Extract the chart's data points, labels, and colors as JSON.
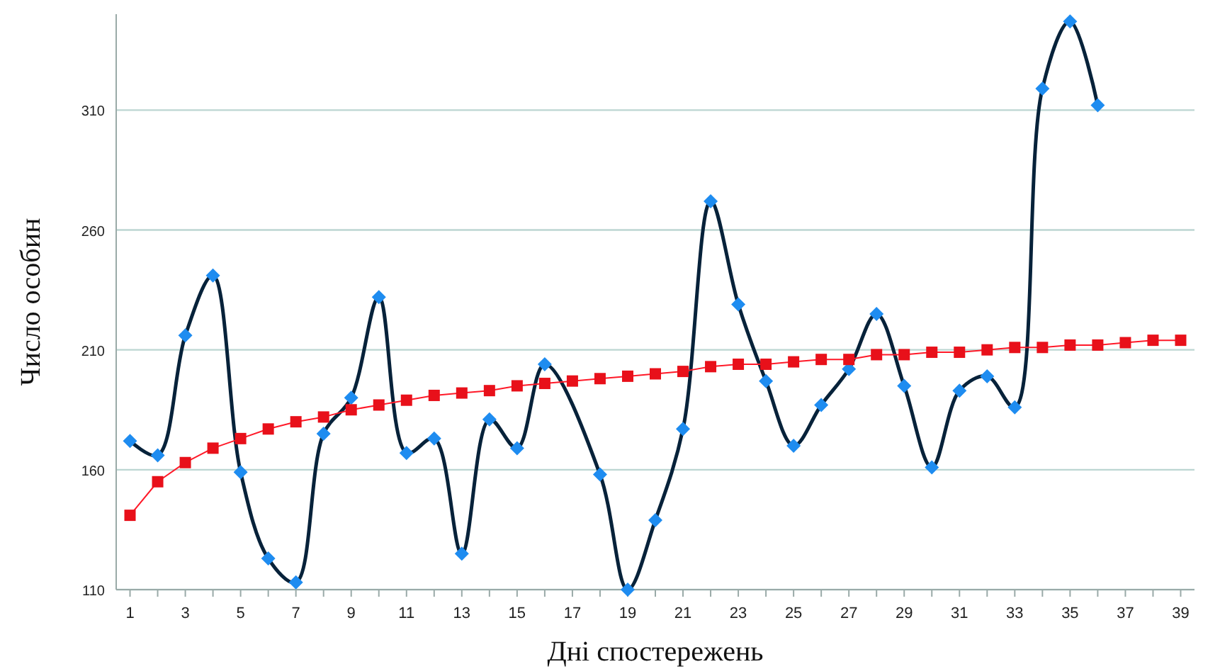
{
  "chart_data": {
    "type": "line",
    "xlabel": "Дні спостережень",
    "ylabel": "Число особин",
    "xlim": [
      0.5,
      39.5
    ],
    "xticks": [
      1,
      {
        "value": 2,
        "label": null
      },
      3,
      {
        "value": 4,
        "label": null
      },
      5,
      {
        "value": 6,
        "label": null
      },
      7,
      {
        "value": 8,
        "label": null
      },
      9,
      {
        "value": 10,
        "label": null
      },
      11,
      {
        "value": 12,
        "label": null
      },
      13,
      {
        "value": 14,
        "label": null
      },
      15,
      {
        "value": 16,
        "label": null
      },
      17,
      {
        "value": 18,
        "label": null
      },
      19,
      {
        "value": 20,
        "label": null
      },
      21,
      {
        "value": 22,
        "label": null
      },
      23,
      {
        "value": 24,
        "label": null
      },
      25,
      {
        "value": 26,
        "label": null
      },
      27,
      {
        "value": 28,
        "label": null
      },
      29,
      {
        "value": 30,
        "label": null
      },
      31,
      {
        "value": 32,
        "label": null
      },
      33,
      {
        "value": 34,
        "label": null
      },
      35,
      {
        "value": 36,
        "label": null
      },
      37,
      {
        "value": 38,
        "label": null
      },
      39
    ],
    "ylim": [
      110,
      350
    ],
    "yticks": [
      110,
      160,
      210,
      260,
      310
    ],
    "grid": "y",
    "series": [
      {
        "color": "#1e8cf0",
        "marker": "diamond",
        "x": [
          1,
          2,
          3,
          4,
          5,
          6,
          7,
          8,
          9,
          10,
          11,
          12,
          13,
          14,
          15,
          16,
          17,
          18,
          19,
          20,
          21,
          22,
          23,
          24,
          25,
          26,
          27,
          28,
          29,
          30,
          31,
          32,
          33,
          34,
          35,
          36
        ],
        "values": [
          172,
          166,
          216,
          241,
          159,
          123,
          113,
          175,
          190,
          232,
          167,
          173,
          125,
          181,
          169,
          204,
          null,
          158,
          110,
          139,
          177,
          272,
          229,
          197,
          170,
          187,
          202,
          225,
          195,
          161,
          193,
          199,
          186,
          319,
          347,
          312
        ]
      },
      {
        "color": "#e8101a",
        "marker": "square",
        "x": [
          1,
          2,
          3,
          4,
          5,
          6,
          7,
          8,
          9,
          10,
          11,
          12,
          13,
          14,
          15,
          16,
          17,
          18,
          19,
          20,
          21,
          22,
          23,
          24,
          25,
          26,
          27,
          28,
          29,
          30,
          31,
          32,
          33,
          34,
          35,
          36,
          37,
          38,
          39
        ],
        "values": [
          141,
          155,
          163,
          169,
          173,
          177,
          180,
          182,
          185,
          187,
          189,
          191,
          192,
          193,
          195,
          196,
          197,
          198,
          199,
          200,
          201,
          203,
          204,
          204,
          205,
          206,
          206,
          208,
          208,
          209,
          209,
          210,
          211,
          211,
          212,
          212,
          213,
          214,
          214
        ]
      }
    ]
  }
}
